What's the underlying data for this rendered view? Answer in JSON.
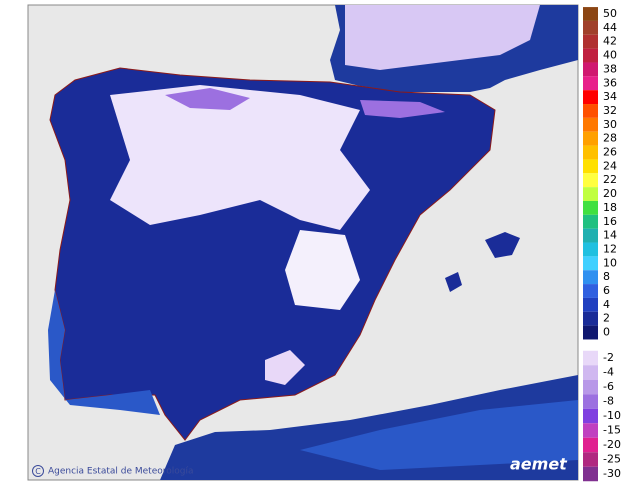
{
  "legend": {
    "upper": [
      {
        "value": 50,
        "color": "#8b4513"
      },
      {
        "value": 44,
        "color": "#a0402a"
      },
      {
        "value": 42,
        "color": "#b03030"
      },
      {
        "value": 40,
        "color": "#c02040"
      },
      {
        "value": 38,
        "color": "#d01870"
      },
      {
        "value": 36,
        "color": "#e8208a"
      },
      {
        "value": 34,
        "color": "#ff0000"
      },
      {
        "value": 32,
        "color": "#ff5000"
      },
      {
        "value": 30,
        "color": "#ff7800"
      },
      {
        "value": 28,
        "color": "#ffa000"
      },
      {
        "value": 26,
        "color": "#ffc000"
      },
      {
        "value": 24,
        "color": "#ffe000"
      },
      {
        "value": 22,
        "color": "#ffff40"
      },
      {
        "value": 20,
        "color": "#c0ff40"
      },
      {
        "value": 18,
        "color": "#40e040"
      },
      {
        "value": 16,
        "color": "#20c080"
      },
      {
        "value": 14,
        "color": "#20b0b0"
      },
      {
        "value": 12,
        "color": "#20c0e0"
      },
      {
        "value": 10,
        "color": "#40d0ff"
      },
      {
        "value": 8,
        "color": "#3090f0"
      },
      {
        "value": 6,
        "color": "#3060e0"
      },
      {
        "value": 4,
        "color": "#2040c0"
      },
      {
        "value": 2,
        "color": "#1a2c98"
      },
      {
        "value": 0,
        "color": "#101870"
      }
    ],
    "lower": [
      {
        "value": -2,
        "color": "#e8d8f8"
      },
      {
        "value": -4,
        "color": "#d0b8f0"
      },
      {
        "value": -6,
        "color": "#b898e8"
      },
      {
        "value": -8,
        "color": "#9c70e0"
      },
      {
        "value": -10,
        "color": "#8040e0"
      },
      {
        "value": -15,
        "color": "#c040c0"
      },
      {
        "value": -20,
        "color": "#e02090"
      },
      {
        "value": -25,
        "color": "#b02880"
      },
      {
        "value": -30,
        "color": "#803090"
      }
    ]
  },
  "credit": "Agencia Estatal de Meteorología",
  "logo": "aemet"
}
